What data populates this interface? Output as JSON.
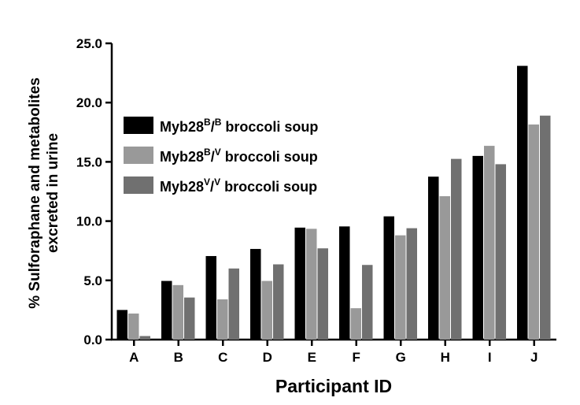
{
  "chart_data": {
    "type": "bar",
    "xlabel": "Participant ID",
    "ylabel_line1": "% Sulforaphane and metabolites",
    "ylabel_line2": "excreted in urine",
    "ylim": [
      0,
      25
    ],
    "yticks": [
      "0.0",
      "5.0",
      "10.0",
      "15.0",
      "20.0",
      "25.0"
    ],
    "categories": [
      "A",
      "B",
      "C",
      "D",
      "E",
      "F",
      "G",
      "H",
      "I",
      "J"
    ],
    "legend_position": "top-left",
    "grid": false,
    "series": [
      {
        "legend_base": "Myb28",
        "sup1": "B",
        "sup2": "B",
        "legend_suffix": " broccoli soup",
        "color": "#000000",
        "values": [
          2.5,
          4.95,
          7.05,
          7.65,
          9.45,
          9.55,
          10.4,
          13.75,
          15.5,
          23.1
        ]
      },
      {
        "legend_base": "Myb28",
        "sup1": "B",
        "sup2": "V",
        "legend_suffix": " broccoli soup",
        "color": "#999999",
        "values": [
          2.2,
          4.6,
          3.4,
          4.95,
          9.35,
          2.65,
          8.8,
          12.1,
          16.35,
          18.15
        ]
      },
      {
        "legend_base": "Myb28",
        "sup1": "V",
        "sup2": "V",
        "legend_suffix": " broccoli soup",
        "color": "#707070",
        "values": [
          0.3,
          3.55,
          6.0,
          6.35,
          7.7,
          6.3,
          9.4,
          15.25,
          14.8,
          18.9
        ]
      }
    ]
  }
}
